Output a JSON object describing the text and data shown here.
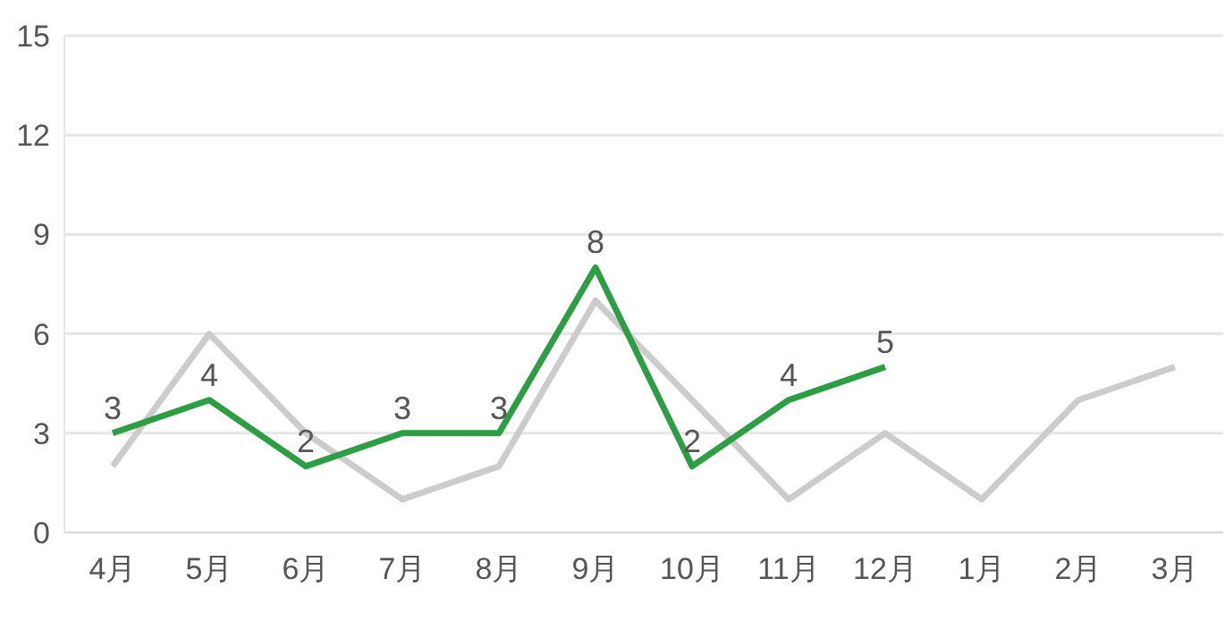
{
  "chart_data": {
    "type": "line",
    "categories": [
      "4月",
      "5月",
      "6月",
      "7月",
      "8月",
      "9月",
      "10月",
      "11月",
      "12月",
      "1月",
      "2月",
      "3月"
    ],
    "series": [
      {
        "color": "#cccccc",
        "values": [
          2,
          6,
          3,
          1,
          2,
          7,
          4,
          1,
          3,
          1,
          4,
          5
        ]
      },
      {
        "color": "#2e9e44",
        "values": [
          3,
          4,
          2,
          3,
          3,
          8,
          2,
          4,
          5,
          null,
          null,
          null
        ],
        "value_labels": [
          "3",
          "4",
          "2",
          "3",
          "3",
          "8",
          "2",
          "4",
          "5",
          null,
          null,
          null
        ]
      }
    ],
    "ylim": [
      0,
      15
    ],
    "yticks": [
      0,
      3,
      6,
      9,
      12,
      15
    ],
    "grid": "y",
    "marker": "none",
    "line_style": "solid"
  }
}
